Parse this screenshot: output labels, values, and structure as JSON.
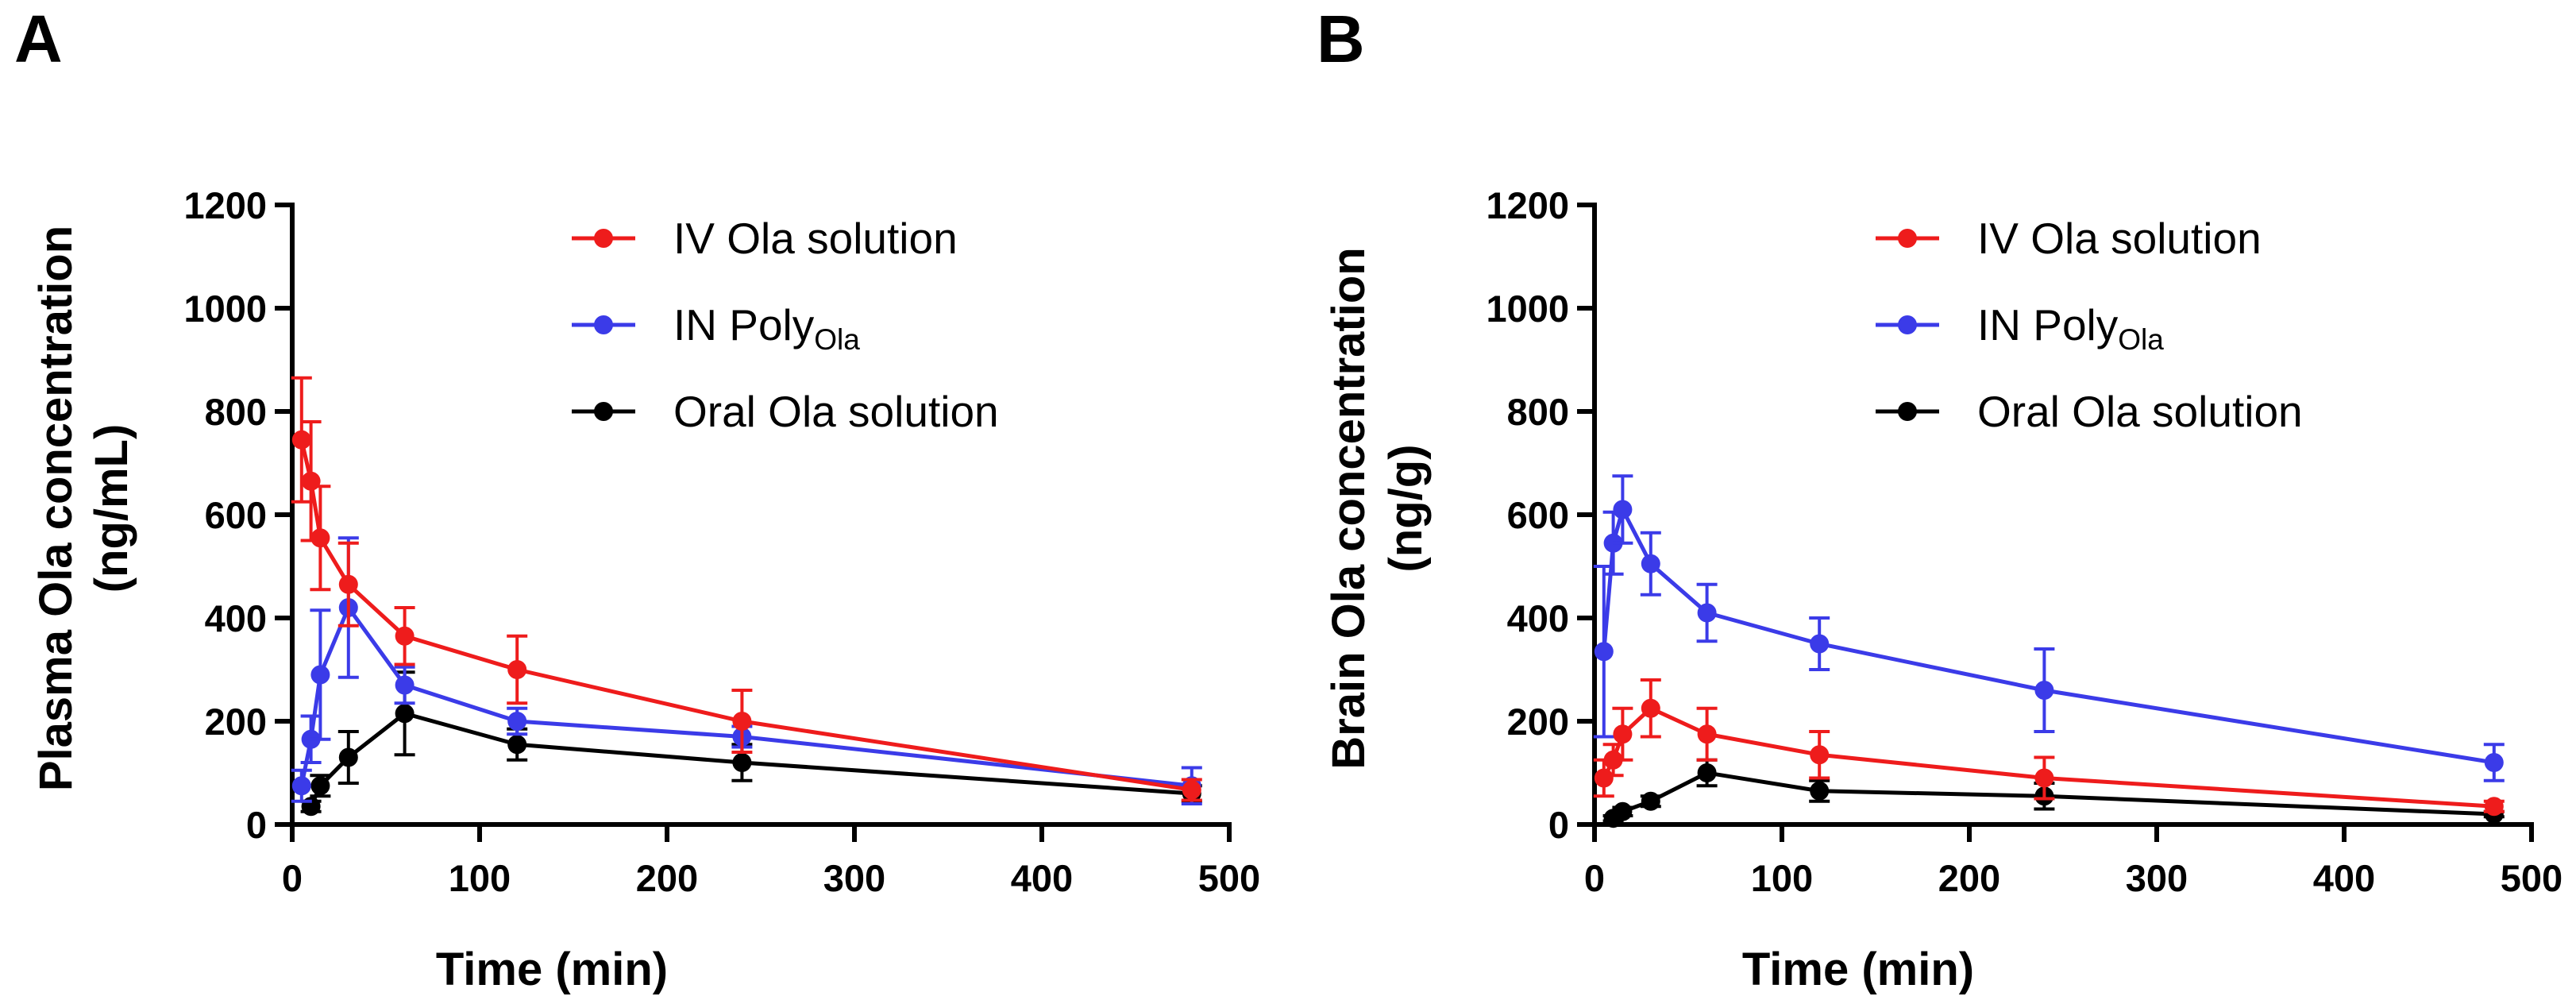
{
  "chart_data": [
    {
      "type": "line",
      "panel_label": "A",
      "xlabel": "Time (min)",
      "ylabel_lines": [
        "Plasma Ola concentration",
        "(ng/mL)"
      ],
      "xlim": [
        0,
        500
      ],
      "ylim": [
        0,
        1200
      ],
      "xticks": [
        0,
        100,
        200,
        300,
        400,
        500
      ],
      "yticks": [
        0,
        200,
        400,
        600,
        800,
        1000,
        1200
      ],
      "legend_position": "top-right",
      "series": [
        {
          "key": "iv",
          "name": "IV Ola solution",
          "name_main": "IV Ola solution",
          "name_sub": "",
          "color": "#ee1c1c",
          "x": [
            5,
            10,
            15,
            30,
            60,
            120,
            240,
            480
          ],
          "y": [
            745,
            665,
            555,
            465,
            365,
            300,
            200,
            67
          ],
          "err": [
            120,
            115,
            100,
            80,
            55,
            65,
            60,
            20
          ]
        },
        {
          "key": "in",
          "name": "IN PolyOla",
          "name_main": "IN Poly",
          "name_sub": "Ola",
          "color": "#3b3be8",
          "x": [
            5,
            10,
            15,
            30,
            60,
            120,
            240,
            480
          ],
          "y": [
            75,
            165,
            290,
            420,
            270,
            200,
            170,
            75
          ],
          "err": [
            30,
            45,
            125,
            135,
            35,
            25,
            20,
            35
          ]
        },
        {
          "key": "oral",
          "name": "Oral Ola solution",
          "name_main": "Oral Ola solution",
          "name_sub": "",
          "color": "#000000",
          "x": [
            10,
            15,
            30,
            60,
            120,
            240,
            480
          ],
          "y": [
            35,
            75,
            130,
            215,
            155,
            120,
            60
          ],
          "err": [
            10,
            20,
            50,
            80,
            30,
            35,
            15
          ]
        }
      ]
    },
    {
      "type": "line",
      "panel_label": "B",
      "xlabel": "Time (min)",
      "ylabel_lines": [
        "Brain Ola concentration",
        "(ng/g)"
      ],
      "xlim": [
        0,
        500
      ],
      "ylim": [
        0,
        1200
      ],
      "xticks": [
        0,
        100,
        200,
        300,
        400,
        500
      ],
      "yticks": [
        0,
        200,
        400,
        600,
        800,
        1000,
        1200
      ],
      "legend_position": "top-right",
      "series": [
        {
          "key": "iv",
          "name": "IV Ola solution",
          "name_main": "IV Ola solution",
          "name_sub": "",
          "color": "#ee1c1c",
          "x": [
            5,
            10,
            15,
            30,
            60,
            120,
            240,
            480
          ],
          "y": [
            90,
            125,
            175,
            225,
            175,
            135,
            90,
            35
          ],
          "err": [
            35,
            30,
            50,
            55,
            50,
            45,
            40,
            10
          ]
        },
        {
          "key": "in",
          "name": "IN PolyOla",
          "name_main": "IN Poly",
          "name_sub": "Ola",
          "color": "#3b3be8",
          "x": [
            5,
            10,
            15,
            30,
            60,
            120,
            240,
            480
          ],
          "y": [
            335,
            545,
            610,
            505,
            410,
            350,
            260,
            120
          ],
          "err": [
            165,
            60,
            65,
            60,
            55,
            50,
            80,
            35
          ]
        },
        {
          "key": "oral",
          "name": "Oral Ola solution",
          "name_main": "Oral Ola solution",
          "name_sub": "",
          "color": "#000000",
          "x": [
            10,
            15,
            30,
            60,
            120,
            240,
            480
          ],
          "y": [
            12,
            25,
            45,
            100,
            65,
            55,
            20
          ],
          "err": [
            5,
            8,
            10,
            25,
            20,
            25,
            5
          ]
        }
      ]
    }
  ]
}
